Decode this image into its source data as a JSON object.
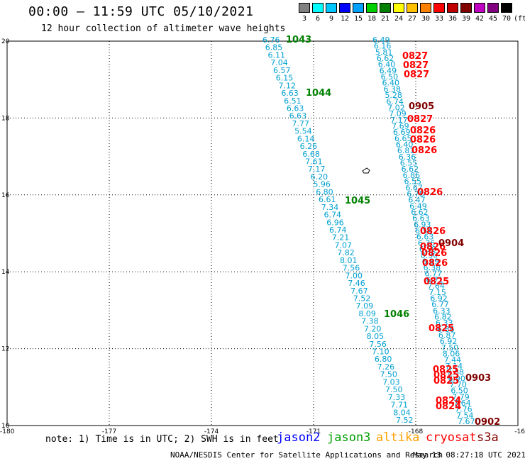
{
  "header": {
    "title": "00:00 — 11:59 UTC 05/10/2021",
    "subtitle": "12 hour collection of altimeter wave heights"
  },
  "legend": {
    "colors": [
      "#808080",
      "#00ffff",
      "#00c8ff",
      "#0000ff",
      "#00a0ff",
      "#00d000",
      "#008000",
      "#ffff00",
      "#ffc000",
      "#ff8000",
      "#ff0000",
      "#c00000",
      "#800000",
      "#c000c0",
      "#800080",
      "#000000"
    ],
    "labels": [
      "3",
      "6",
      "9",
      "12",
      "15",
      "18",
      "21",
      "24",
      "27",
      "30",
      "33",
      "36",
      "39",
      "42",
      "45",
      "70",
      "(ft)"
    ]
  },
  "axes": {
    "x_ticks": [
      "-180",
      "-177",
      "-174",
      "-171",
      "-168",
      "-16"
    ],
    "y_ticks": [
      "20",
      "18",
      "16",
      "14",
      "12",
      "10"
    ]
  },
  "colors": {
    "jason2": "#00a0d0",
    "jason3": "#008000",
    "cryosat": "#ff0000",
    "s3a": "#800000",
    "altika": "#ffa000"
  },
  "tracks": {
    "jason2_a": [
      "6.76",
      "6.85",
      "6.11",
      "7.04",
      "6.57",
      "6.15",
      "7.12",
      "6.63",
      "6.51",
      "6.63",
      "6.63",
      "7.77",
      "5.54",
      "6.14",
      "6.26",
      "6.68",
      "7.61",
      "7.17",
      "6.20",
      "5.96",
      "6.80",
      "6.61",
      "7.34",
      "6.74",
      "6.96",
      "6.74",
      "7.21",
      "7.07",
      "7.82",
      "8.01",
      "7.56",
      "7.00",
      "7.46",
      "7.67",
      "7.52",
      "7.09",
      "8.09",
      "7.38",
      "7.20",
      "8.05",
      "7.56",
      "7.10",
      "6.80",
      "7.26",
      "7.50",
      "7.03",
      "7.50",
      "7.33",
      "7.71",
      "8.04",
      "7.52"
    ],
    "jason2_b": [
      "6.49",
      "6.16",
      "5.81",
      "6.62",
      "6.40",
      "6.49",
      "6.50",
      "6.40",
      "6.38",
      "5.28",
      "6.74",
      "7.02",
      "7.09",
      "7.17",
      "7.69",
      "6.69",
      "6.65",
      "6.40",
      "6.81",
      "6.36",
      "6.55",
      "6.62",
      "6.86",
      "6.55",
      "6.67",
      "6.78",
      "6.47",
      "6.49",
      "6.62",
      "6.63",
      "6.93",
      "6.54",
      "6.63",
      "6.36",
      "6.59",
      "8.30",
      "6.39",
      "6.38",
      "6.77",
      "6.71",
      "7.64",
      "7.15",
      "6.92",
      "6.77",
      "6.33",
      "6.82",
      "6.33",
      "6.86",
      "6.87",
      "6.92",
      "7.50",
      "8.06",
      "7.44",
      "7.14",
      "7.88",
      "6.90",
      "7.70",
      "6.50",
      "7.79",
      "7.64",
      "7.76",
      "7.54",
      "7.67"
    ],
    "jason3": [
      "1043",
      "1044",
      "1045",
      "1046"
    ],
    "cryosat": [
      "0827",
      "0827",
      "0827",
      "0827",
      "0826",
      "0826",
      "0826",
      "0826",
      "0826",
      "0826",
      "0826",
      "0826",
      "0825",
      "0825",
      "0825",
      "0825",
      "0825",
      "0824",
      "0824"
    ],
    "s3a": [
      "0905",
      "0904",
      "0903",
      "0902"
    ]
  },
  "footer": {
    "note": "note:  1) Time is in UTC; 2) SWH is in feet",
    "sat_jason2": "jason2",
    "sat_jason3": "jason3",
    "sat_altika": "altika",
    "sat_cryosat": "cryosat",
    "sat_s3a": "s3a",
    "credit": "NOAA/NESDIS Center for Satellite Applications and Research",
    "timestamp": "May 13 08:27:18 UTC 2021"
  }
}
